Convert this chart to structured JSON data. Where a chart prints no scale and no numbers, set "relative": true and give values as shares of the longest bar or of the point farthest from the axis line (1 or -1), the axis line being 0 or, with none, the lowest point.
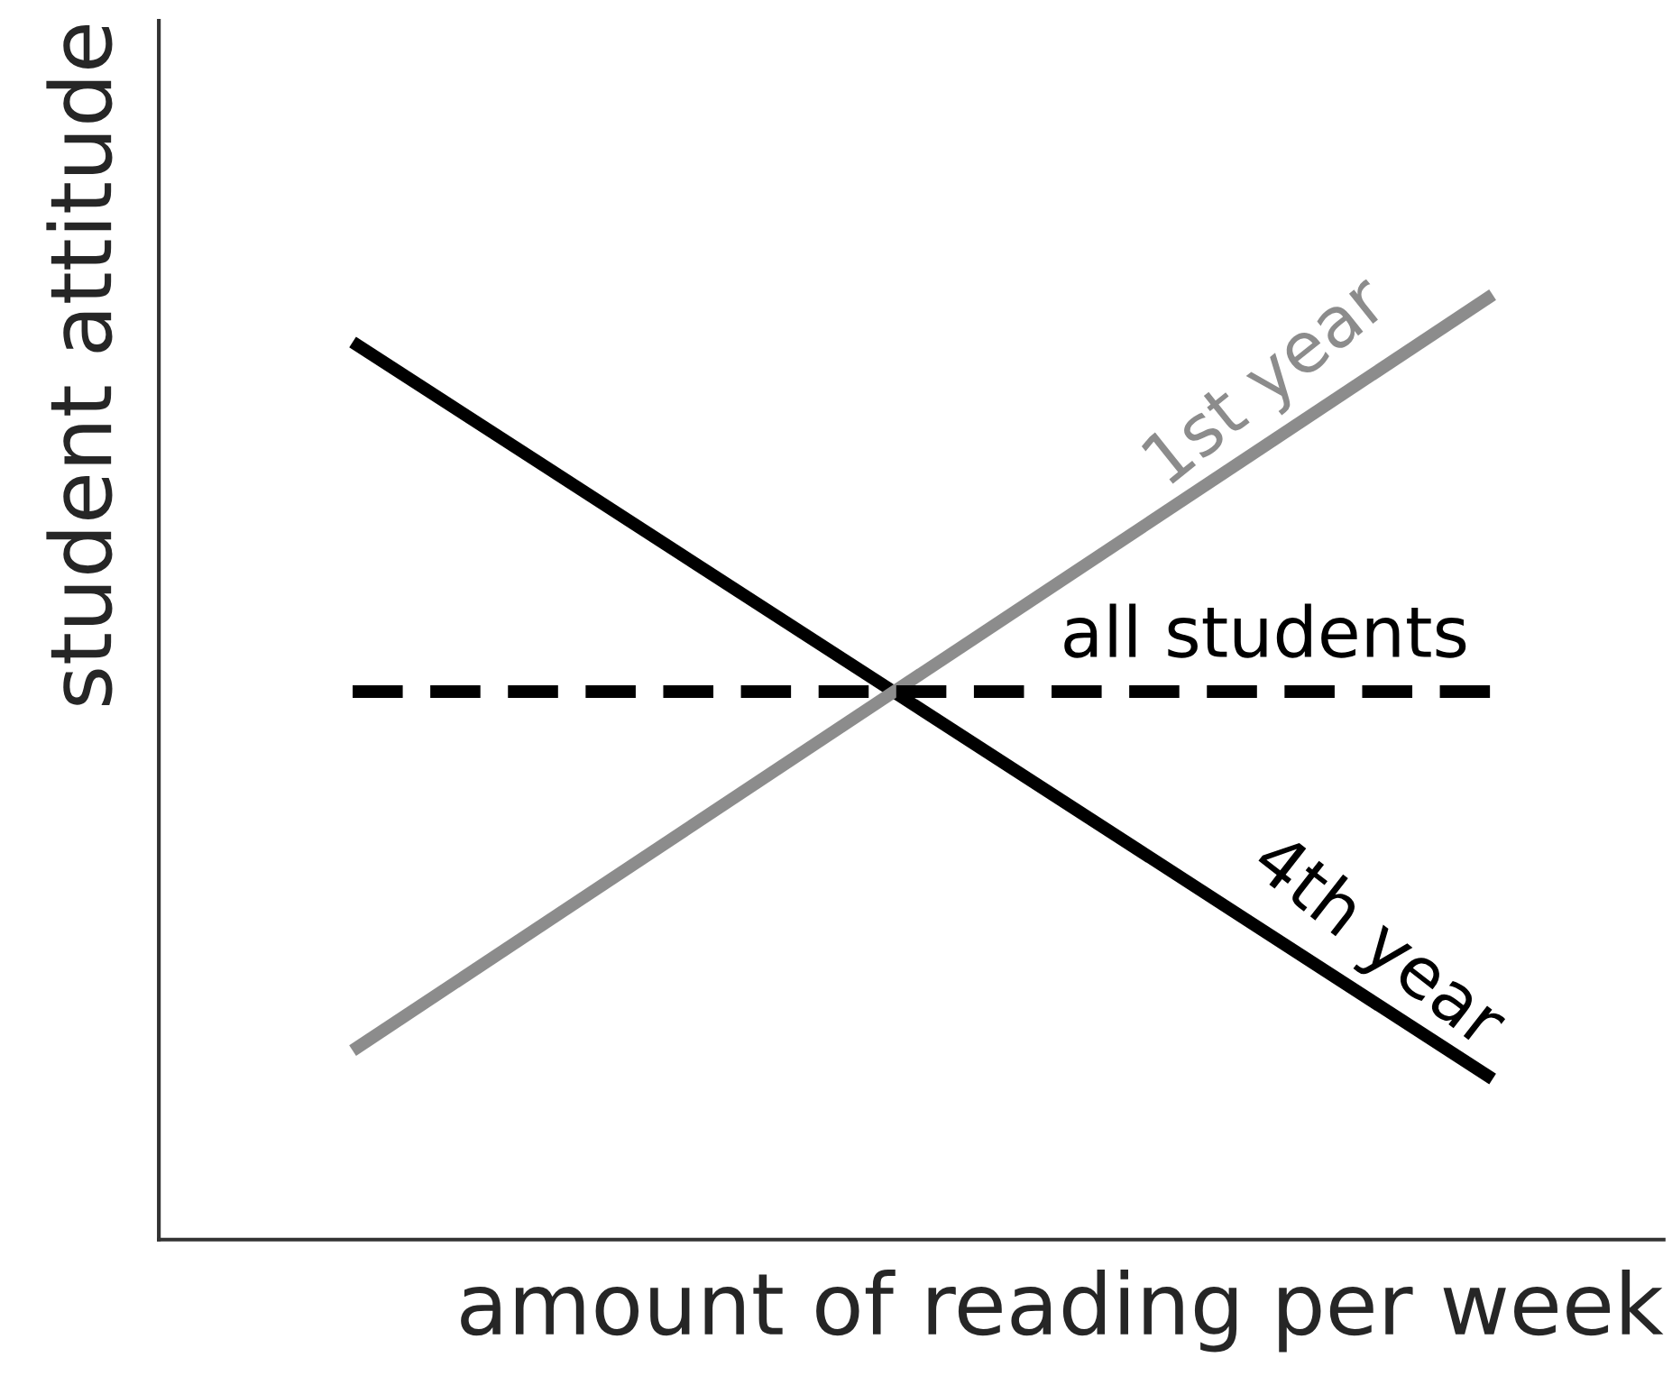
{
  "chart_data": {
    "type": "line",
    "relative": true,
    "xlabel": "amount of reading per week",
    "ylabel": "student attitude",
    "categories": [
      null,
      null
    ],
    "legend": false,
    "series": [
      {
        "name": "4th year",
        "color": "#000000",
        "values": [
          0.95,
          0.17
        ],
        "line_style": "solid"
      },
      {
        "name": "1st year",
        "color": "#8c8c8c",
        "values": [
          0.2,
          1.0
        ],
        "line_style": "solid"
      },
      {
        "name": "all students",
        "color": "#000000",
        "values": [
          0.58,
          0.58
        ],
        "line_style": "dashed"
      }
    ]
  }
}
